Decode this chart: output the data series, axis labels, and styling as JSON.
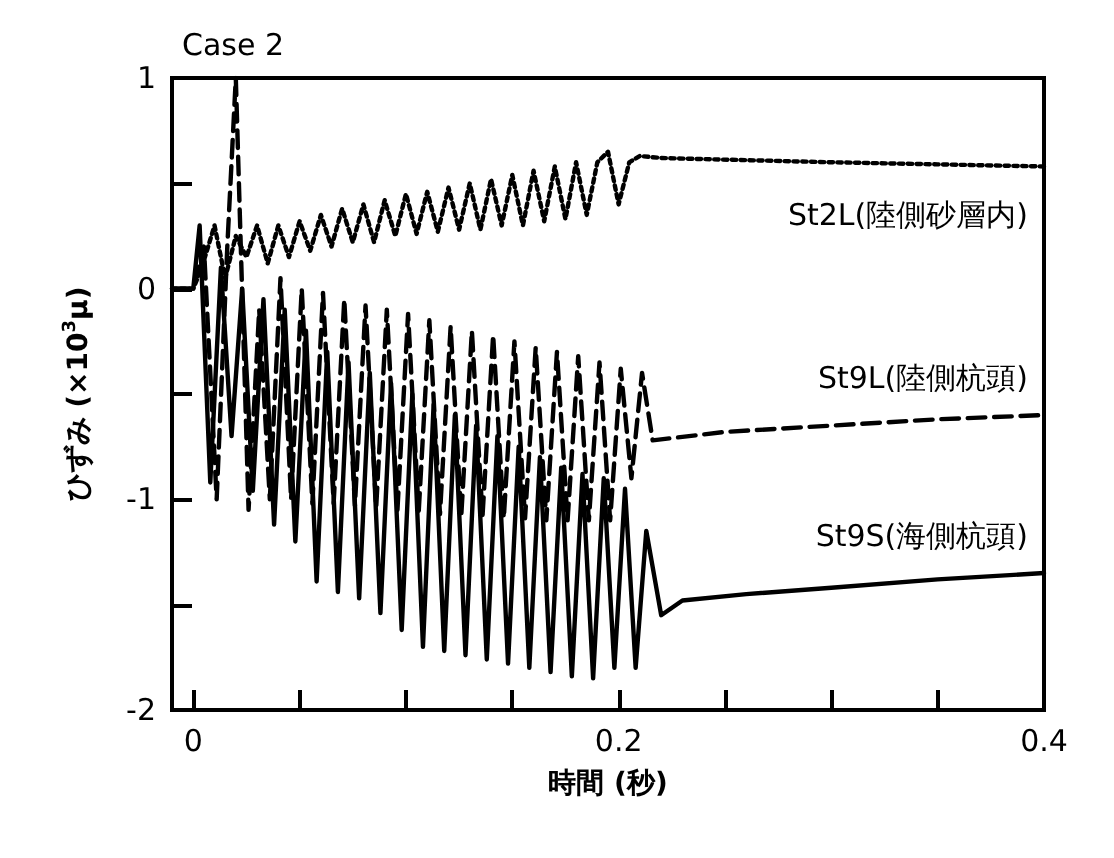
{
  "chart_data": {
    "type": "line",
    "title": "Case 2",
    "xlabel": "時間 (秒)",
    "ylabel": "ひずみ (×10$^{3}$μ)",
    "xlim": [
      -0.01,
      0.4
    ],
    "xticks": [
      0,
      {
        "value": 0.05,
        "label": null
      },
      {
        "value": 0.1,
        "label": null
      },
      {
        "value": 0.15,
        "label": null
      },
      0.2,
      {
        "value": 0.25,
        "label": null
      },
      {
        "value": 0.3,
        "label": null
      },
      {
        "value": 0.35,
        "label": null
      },
      0.4
    ],
    "ylim": [
      -2,
      1
    ],
    "yticks": [
      -2,
      {
        "value": -1.5,
        "label": null
      },
      -1,
      {
        "value": -0.5,
        "label": null
      },
      0,
      {
        "value": 0.5,
        "label": null
      },
      1
    ],
    "grid": false,
    "legend": false,
    "marker": "none",
    "series": [
      {
        "name": "St2L(陸側砂層内)",
        "color": "#000000",
        "line_style": "dotted",
        "x": [
          -0.01,
          0,
          0.004,
          0.01,
          0.015,
          0.02,
          0.025,
          0.03,
          0.035,
          0.04,
          0.045,
          0.05,
          0.055,
          0.06,
          0.065,
          0.07,
          0.075,
          0.08,
          0.085,
          0.09,
          0.095,
          0.1,
          0.105,
          0.11,
          0.115,
          0.12,
          0.125,
          0.13,
          0.135,
          0.14,
          0.145,
          0.15,
          0.155,
          0.16,
          0.165,
          0.17,
          0.175,
          0.18,
          0.185,
          0.19,
          0.195,
          0.2,
          0.205,
          0.21,
          0.22,
          0.26,
          0.3,
          0.35,
          0.4
        ],
        "values": [
          0,
          0,
          0.1,
          0.3,
          0.05,
          0.25,
          0.15,
          0.3,
          0.12,
          0.3,
          0.15,
          0.32,
          0.18,
          0.35,
          0.2,
          0.38,
          0.22,
          0.4,
          0.22,
          0.42,
          0.25,
          0.45,
          0.26,
          0.46,
          0.27,
          0.48,
          0.28,
          0.5,
          0.28,
          0.52,
          0.3,
          0.54,
          0.3,
          0.56,
          0.32,
          0.58,
          0.33,
          0.6,
          0.35,
          0.6,
          0.65,
          0.4,
          0.6,
          0.63,
          0.62,
          0.61,
          0.6,
          0.59,
          0.58
        ]
      },
      {
        "name": "St9L(陸側杭頭)",
        "color": "#000000",
        "line_style": "dashed",
        "x": [
          -0.01,
          0,
          0.005,
          0.011,
          0.016,
          0.02,
          0.026,
          0.031,
          0.036,
          0.041,
          0.046,
          0.051,
          0.056,
          0.061,
          0.066,
          0.071,
          0.076,
          0.081,
          0.086,
          0.091,
          0.096,
          0.101,
          0.106,
          0.111,
          0.116,
          0.121,
          0.126,
          0.131,
          0.136,
          0.141,
          0.146,
          0.151,
          0.156,
          0.161,
          0.166,
          0.171,
          0.176,
          0.181,
          0.186,
          0.191,
          0.196,
          0.201,
          0.206,
          0.211,
          0.216,
          0.25,
          0.3,
          0.35,
          0.4
        ],
        "values": [
          0,
          0,
          0.2,
          -1.0,
          0.2,
          1.0,
          -1.05,
          -0.1,
          -1.0,
          0.05,
          -1.0,
          0.0,
          -1.02,
          -0.02,
          -1.02,
          -0.05,
          -1.03,
          -0.08,
          -1.04,
          -0.1,
          -1.05,
          -0.12,
          -1.06,
          -0.15,
          -1.07,
          -0.18,
          -1.08,
          -0.2,
          -1.08,
          -0.22,
          -1.09,
          -0.25,
          -1.09,
          -0.28,
          -1.1,
          -0.3,
          -1.1,
          -0.32,
          -1.1,
          -0.35,
          -1.1,
          -0.38,
          -0.9,
          -0.4,
          -0.72,
          -0.68,
          -0.65,
          -0.62,
          -0.6
        ]
      },
      {
        "name": "St9S(海側杭頭)",
        "color": "#000000",
        "line_style": "solid",
        "x": [
          -0.01,
          0,
          0.003,
          0.008,
          0.013,
          0.018,
          0.023,
          0.028,
          0.033,
          0.038,
          0.043,
          0.048,
          0.053,
          0.058,
          0.063,
          0.068,
          0.073,
          0.078,
          0.083,
          0.088,
          0.093,
          0.098,
          0.103,
          0.108,
          0.113,
          0.118,
          0.123,
          0.128,
          0.133,
          0.138,
          0.143,
          0.148,
          0.153,
          0.158,
          0.163,
          0.168,
          0.173,
          0.178,
          0.183,
          0.188,
          0.193,
          0.198,
          0.203,
          0.208,
          0.213,
          0.22,
          0.23,
          0.26,
          0.3,
          0.35,
          0.4
        ],
        "values": [
          0,
          0,
          0.3,
          -0.92,
          0.1,
          -0.7,
          0.0,
          -0.96,
          -0.05,
          -1.12,
          -0.1,
          -1.2,
          -0.2,
          -1.39,
          -0.3,
          -1.44,
          -0.35,
          -1.47,
          -0.4,
          -1.54,
          -0.45,
          -1.62,
          -0.5,
          -1.7,
          -0.55,
          -1.72,
          -0.6,
          -1.74,
          -0.65,
          -1.76,
          -0.7,
          -1.78,
          -0.75,
          -1.8,
          -0.8,
          -1.82,
          -0.85,
          -1.84,
          -0.88,
          -1.85,
          -0.9,
          -1.8,
          -0.95,
          -1.8,
          -1.15,
          -1.55,
          -1.48,
          -1.45,
          -1.42,
          -1.38,
          -1.35
        ]
      }
    ]
  }
}
